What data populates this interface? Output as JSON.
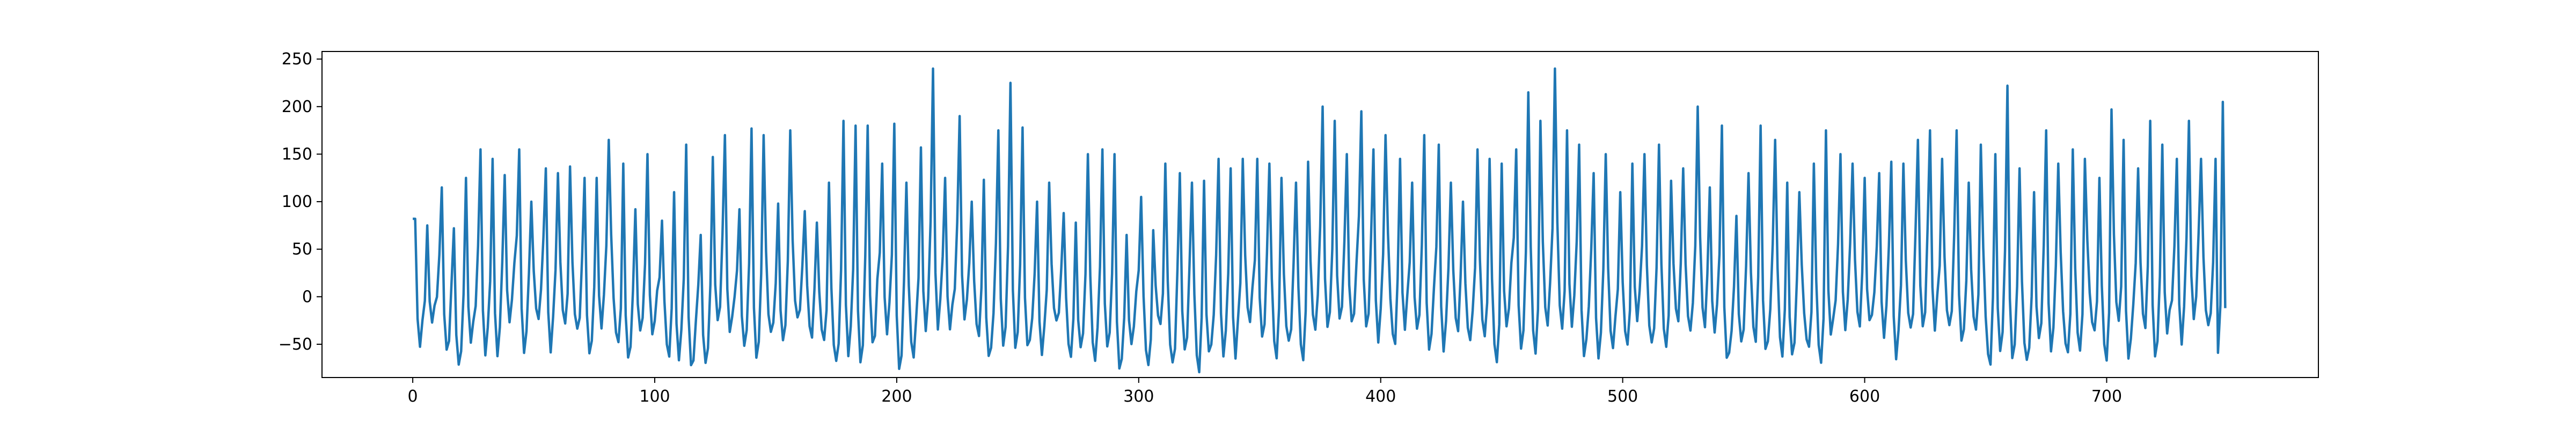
{
  "chart_data": {
    "type": "line",
    "title": "",
    "xlabel": "",
    "ylabel": "",
    "xlim": [
      -37.5,
      787.5
    ],
    "ylim": [
      -85,
      258
    ],
    "grid": false,
    "legend": "none",
    "xticks": [
      0,
      100,
      200,
      300,
      400,
      500,
      600,
      700
    ],
    "yticks": [
      -50,
      0,
      50,
      100,
      150,
      200,
      250
    ],
    "series": [
      {
        "color": "#1f77b4",
        "n_points": 750,
        "peak_interval": 5.35,
        "peak_values": [
          82,
          75,
          115,
          72,
          125,
          155,
          145,
          128,
          155,
          100,
          135,
          130,
          137,
          125,
          125,
          165,
          140,
          92,
          150,
          80,
          110,
          160,
          65,
          147,
          170,
          92,
          177,
          170,
          98,
          175,
          90,
          78,
          120,
          185,
          180,
          180,
          140,
          182,
          120,
          157,
          240,
          125,
          190,
          100,
          123,
          175,
          225,
          178,
          100,
          120,
          88,
          78,
          150,
          155,
          150,
          65,
          105,
          70,
          140,
          130,
          120,
          122,
          145,
          135,
          145,
          145,
          140,
          125,
          120,
          142,
          200,
          185,
          150,
          195,
          155,
          170,
          145,
          120,
          170,
          160,
          120,
          100,
          155,
          145,
          140,
          155,
          215,
          185,
          240,
          175,
          160,
          130,
          150,
          110,
          140,
          150,
          160,
          122,
          135,
          200,
          115,
          180,
          85,
          130,
          180,
          165,
          120,
          110,
          140,
          175,
          150,
          140,
          125,
          130,
          142,
          140,
          165,
          175,
          145,
          175,
          120,
          160,
          150,
          222,
          135,
          110,
          175,
          140,
          155,
          145,
          125,
          197,
          165,
          135,
          185,
          160,
          145,
          185,
          145,
          145,
          160,
          165,
          140,
          165,
          120,
          195,
          172,
          150,
          205
        ],
        "trough_min": -70,
        "trough_max": -5,
        "y_start": 82,
        "y_end": -12
      }
    ]
  }
}
